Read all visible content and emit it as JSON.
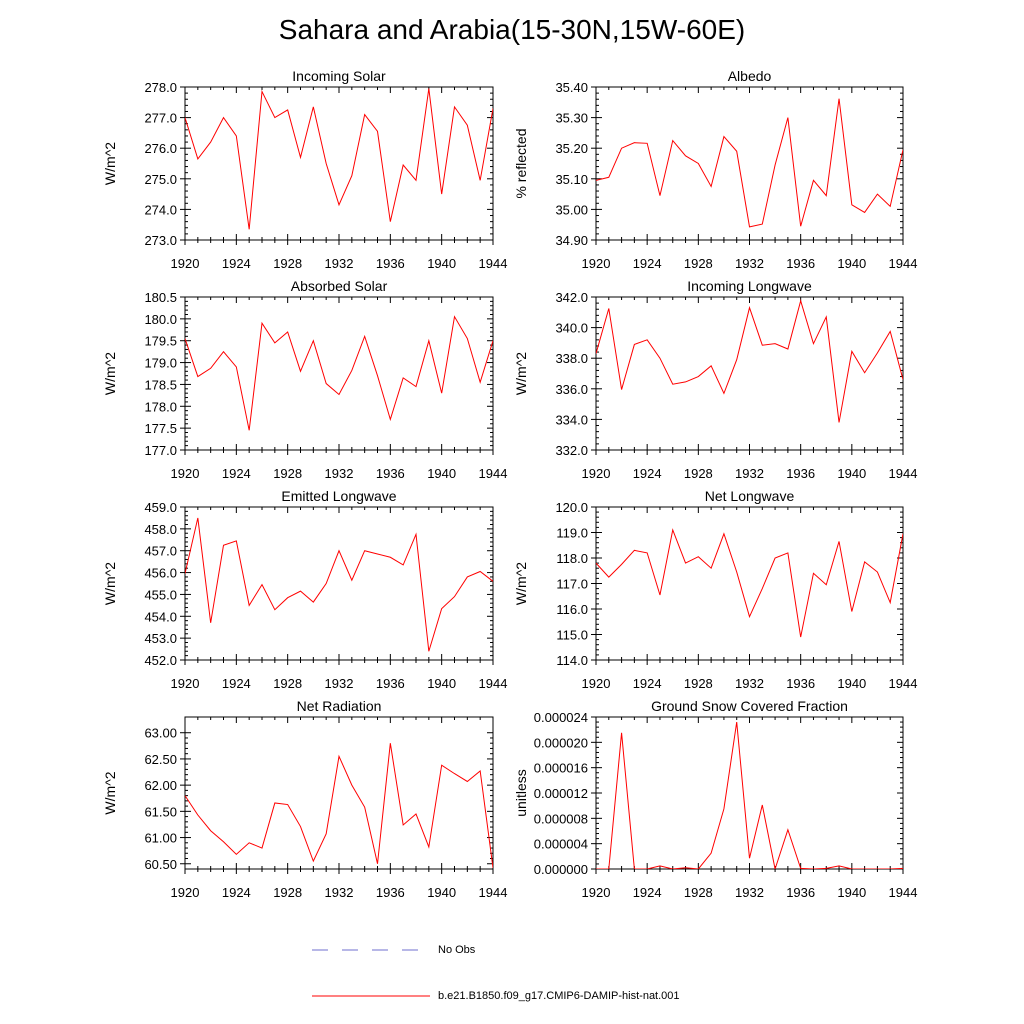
{
  "title": "Sahara and Arabia(15-30N,15W-60E)",
  "colors": {
    "model": "#ff0000",
    "obs": "#6f6fcf",
    "axis": "#000000"
  },
  "legend": {
    "obs_label": "No Obs",
    "model_label": "b.e21.B1850.f09_g17.CMIP6-DAMIP-hist-nat.001"
  },
  "chart_data": [
    {
      "type": "line",
      "title": "Incoming Solar",
      "ylabel": "W/m^2",
      "xlim": [
        1920,
        1944
      ],
      "ylim": [
        273.0,
        278.0
      ],
      "yticks": [
        273.0,
        274.0,
        275.0,
        276.0,
        277.0,
        278.0
      ],
      "ytick_labels": [
        "273.0",
        "274.0",
        "275.0",
        "276.0",
        "277.0",
        "278.0"
      ],
      "xticks": [
        1920,
        1924,
        1928,
        1932,
        1936,
        1940,
        1944
      ],
      "x": [
        1920,
        1921,
        1922,
        1923,
        1924,
        1925,
        1926,
        1927,
        1928,
        1929,
        1930,
        1931,
        1932,
        1933,
        1934,
        1935,
        1936,
        1937,
        1938,
        1939,
        1940,
        1941,
        1942,
        1943,
        1944
      ],
      "series": [
        {
          "values": [
            277.0,
            275.65,
            276.2,
            277.0,
            276.4,
            273.35,
            277.85,
            277.0,
            277.25,
            275.7,
            277.35,
            275.5,
            274.15,
            275.1,
            277.1,
            276.55,
            273.6,
            275.45,
            274.95,
            277.95,
            274.5,
            277.35,
            276.75,
            274.95,
            277.3
          ]
        }
      ]
    },
    {
      "type": "line",
      "title": "Albedo",
      "ylabel": "% reflected",
      "xlim": [
        1920,
        1944
      ],
      "ylim": [
        34.9,
        35.4
      ],
      "yticks": [
        34.9,
        35.0,
        35.1,
        35.2,
        35.3,
        35.4
      ],
      "ytick_labels": [
        "34.90",
        "35.00",
        "35.10",
        "35.20",
        "35.30",
        "35.40"
      ],
      "xticks": [
        1920,
        1924,
        1928,
        1932,
        1936,
        1940,
        1944
      ],
      "x": [
        1920,
        1921,
        1922,
        1923,
        1924,
        1925,
        1926,
        1927,
        1928,
        1929,
        1930,
        1931,
        1932,
        1933,
        1934,
        1935,
        1936,
        1937,
        1938,
        1939,
        1940,
        1941,
        1942,
        1943,
        1944
      ],
      "series": [
        {
          "values": [
            35.095,
            35.105,
            35.2,
            35.218,
            35.216,
            35.045,
            35.225,
            35.175,
            35.15,
            35.075,
            35.238,
            35.19,
            34.943,
            34.952,
            35.145,
            35.3,
            34.945,
            35.095,
            35.045,
            35.362,
            35.015,
            34.99,
            35.05,
            35.01,
            35.195
          ]
        }
      ]
    },
    {
      "type": "line",
      "title": "Absorbed Solar",
      "ylabel": "W/m^2",
      "xlim": [
        1920,
        1944
      ],
      "ylim": [
        177.0,
        180.5
      ],
      "yticks": [
        177.0,
        177.5,
        178.0,
        178.5,
        179.0,
        179.5,
        180.0,
        180.5
      ],
      "ytick_labels": [
        "177.0",
        "177.5",
        "178.0",
        "178.5",
        "179.0",
        "179.5",
        "180.0",
        "180.5"
      ],
      "xticks": [
        1920,
        1924,
        1928,
        1932,
        1936,
        1940,
        1944
      ],
      "x": [
        1920,
        1921,
        1922,
        1923,
        1924,
        1925,
        1926,
        1927,
        1928,
        1929,
        1930,
        1931,
        1932,
        1933,
        1934,
        1935,
        1936,
        1937,
        1938,
        1939,
        1940,
        1941,
        1942,
        1943,
        1944
      ],
      "series": [
        {
          "values": [
            179.55,
            178.68,
            178.87,
            179.25,
            178.9,
            177.45,
            179.9,
            179.45,
            179.7,
            178.8,
            179.5,
            178.52,
            178.27,
            178.82,
            179.6,
            178.7,
            177.7,
            178.65,
            178.45,
            179.5,
            178.3,
            180.05,
            179.55,
            178.55,
            179.5
          ]
        }
      ]
    },
    {
      "type": "line",
      "title": "Incoming Longwave",
      "ylabel": "W/m^2",
      "xlim": [
        1920,
        1944
      ],
      "ylim": [
        332.0,
        342.0
      ],
      "yticks": [
        332.0,
        334.0,
        336.0,
        338.0,
        340.0,
        342.0
      ],
      "ytick_labels": [
        "332.0",
        "334.0",
        "336.0",
        "338.0",
        "340.0",
        "342.0"
      ],
      "xticks": [
        1920,
        1924,
        1928,
        1932,
        1936,
        1940,
        1944
      ],
      "x": [
        1920,
        1921,
        1922,
        1923,
        1924,
        1925,
        1926,
        1927,
        1928,
        1929,
        1930,
        1931,
        1932,
        1933,
        1934,
        1935,
        1936,
        1937,
        1938,
        1939,
        1940,
        1941,
        1942,
        1943,
        1944
      ],
      "series": [
        {
          "values": [
            338.3,
            341.25,
            335.95,
            338.9,
            339.2,
            338.0,
            336.3,
            336.45,
            336.8,
            337.5,
            335.7,
            337.9,
            341.3,
            338.85,
            338.95,
            338.6,
            341.75,
            338.95,
            340.7,
            333.8,
            338.45,
            337.05,
            338.35,
            339.75,
            336.6
          ]
        }
      ]
    },
    {
      "type": "line",
      "title": "Emitted Longwave",
      "ylabel": "W/m^2",
      "xlim": [
        1920,
        1944
      ],
      "ylim": [
        452.0,
        459.0
      ],
      "yticks": [
        452.0,
        453.0,
        454.0,
        455.0,
        456.0,
        457.0,
        458.0,
        459.0
      ],
      "ytick_labels": [
        "452.0",
        "453.0",
        "454.0",
        "455.0",
        "456.0",
        "457.0",
        "458.0",
        "459.0"
      ],
      "xticks": [
        1920,
        1924,
        1928,
        1932,
        1936,
        1940,
        1944
      ],
      "x": [
        1920,
        1921,
        1922,
        1923,
        1924,
        1925,
        1926,
        1927,
        1928,
        1929,
        1930,
        1931,
        1932,
        1933,
        1934,
        1935,
        1936,
        1937,
        1938,
        1939,
        1940,
        1941,
        1942,
        1943,
        1944
      ],
      "series": [
        {
          "values": [
            455.95,
            458.5,
            453.7,
            457.25,
            457.45,
            454.5,
            455.45,
            454.3,
            454.85,
            455.15,
            454.65,
            455.5,
            457.0,
            455.65,
            457.0,
            456.85,
            456.7,
            456.35,
            457.75,
            452.4,
            454.35,
            454.9,
            455.8,
            456.05,
            455.6
          ]
        }
      ]
    },
    {
      "type": "line",
      "title": "Net Longwave",
      "ylabel": "W/m^2",
      "xlim": [
        1920,
        1944
      ],
      "ylim": [
        114.0,
        120.0
      ],
      "yticks": [
        114.0,
        115.0,
        116.0,
        117.0,
        118.0,
        119.0,
        120.0
      ],
      "ytick_labels": [
        "114.0",
        "115.0",
        "116.0",
        "117.0",
        "118.0",
        "119.0",
        "120.0"
      ],
      "xticks": [
        1920,
        1924,
        1928,
        1932,
        1936,
        1940,
        1944
      ],
      "x": [
        1920,
        1921,
        1922,
        1923,
        1924,
        1925,
        1926,
        1927,
        1928,
        1929,
        1930,
        1931,
        1932,
        1933,
        1934,
        1935,
        1936,
        1937,
        1938,
        1939,
        1940,
        1941,
        1942,
        1943,
        1944
      ],
      "series": [
        {
          "values": [
            117.8,
            117.25,
            117.75,
            118.3,
            118.2,
            116.55,
            119.1,
            117.8,
            118.05,
            117.6,
            118.95,
            117.45,
            115.7,
            116.8,
            118.0,
            118.2,
            114.9,
            117.4,
            116.95,
            118.65,
            115.9,
            117.85,
            117.45,
            116.25,
            118.95
          ]
        }
      ]
    },
    {
      "type": "line",
      "title": "Net Radiation",
      "ylabel": "W/m^2",
      "xlim": [
        1920,
        1944
      ],
      "ylim": [
        60.4,
        63.3
      ],
      "yticks": [
        60.5,
        61.0,
        61.5,
        62.0,
        62.5,
        63.0
      ],
      "ytick_labels": [
        "60.50",
        "61.00",
        "61.50",
        "62.00",
        "62.50",
        "63.00"
      ],
      "xticks": [
        1920,
        1924,
        1928,
        1932,
        1936,
        1940,
        1944
      ],
      "x": [
        1920,
        1921,
        1922,
        1923,
        1924,
        1925,
        1926,
        1927,
        1928,
        1929,
        1930,
        1931,
        1932,
        1933,
        1934,
        1935,
        1936,
        1937,
        1938,
        1939,
        1940,
        1941,
        1942,
        1943,
        1944
      ],
      "series": [
        {
          "values": [
            61.8,
            61.43,
            61.13,
            60.92,
            60.68,
            60.9,
            60.8,
            61.66,
            61.63,
            61.21,
            60.55,
            61.07,
            62.55,
            62.0,
            61.58,
            60.5,
            62.8,
            61.24,
            61.45,
            60.82,
            62.38,
            62.22,
            62.07,
            62.27,
            60.42
          ]
        }
      ]
    },
    {
      "type": "line",
      "title": "Ground Snow Covered Fraction",
      "ylabel": "unitless",
      "xlim": [
        1920,
        1944
      ],
      "ylim": [
        0.0,
        2.4e-05
      ],
      "yticks": [
        0.0,
        4e-06,
        8e-06,
        1.2e-05,
        1.6e-05,
        2e-05,
        2.4e-05
      ],
      "ytick_labels": [
        "0.000000",
        "0.000004",
        "0.000008",
        "0.000012",
        "0.000016",
        "0.000020",
        "0.000024"
      ],
      "xticks": [
        1920,
        1924,
        1928,
        1932,
        1936,
        1940,
        1944
      ],
      "x": [
        1920,
        1921,
        1922,
        1923,
        1924,
        1925,
        1926,
        1927,
        1928,
        1929,
        1930,
        1931,
        1932,
        1933,
        1934,
        1935,
        1936,
        1937,
        1938,
        1939,
        1940,
        1941,
        1942,
        1943,
        1944
      ],
      "series": [
        {
          "values": [
            0.0,
            0.0,
            2.15e-05,
            0.0,
            0.0,
            5e-07,
            0.0,
            2e-07,
            0.0,
            2.5e-06,
            9.5e-06,
            2.32e-05,
            1.7e-06,
            1.01e-05,
            0.0,
            6.2e-06,
            1e-07,
            0.0,
            1e-07,
            5e-07,
            0.0,
            0.0,
            0.0,
            0.0,
            1e-07
          ]
        }
      ]
    }
  ]
}
